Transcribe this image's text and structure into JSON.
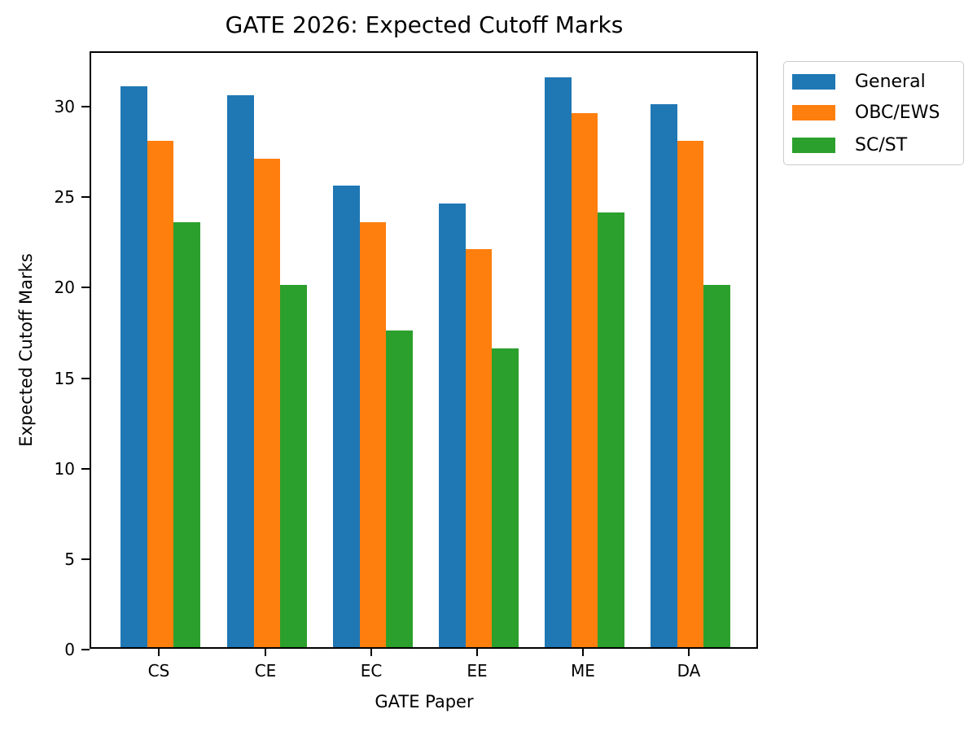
{
  "chart_data": {
    "type": "bar",
    "title": "GATE 2026: Expected Cutoff Marks",
    "xlabel": "GATE Paper",
    "ylabel": "Expected Cutoff Marks",
    "categories": [
      "CS",
      "CE",
      "EC",
      "EE",
      "ME",
      "DA"
    ],
    "series": [
      {
        "name": "General",
        "color": "#1f77b4",
        "values": [
          31,
          30.5,
          25.5,
          24.5,
          31.5,
          30
        ]
      },
      {
        "name": "OBC/EWS",
        "color": "#ff7f0e",
        "values": [
          28,
          27,
          23.5,
          22,
          29.5,
          28
        ]
      },
      {
        "name": "SC/ST",
        "color": "#2ca02c",
        "values": [
          23.5,
          20,
          17.5,
          16.5,
          24,
          20
        ]
      }
    ],
    "yticks": [
      0,
      5,
      10,
      15,
      20,
      25,
      30
    ],
    "ylim": [
      0,
      33
    ],
    "grid": false,
    "legend_position": "outside upper right"
  },
  "title": "GATE 2026: Expected Cutoff Marks",
  "xlabel": "GATE Paper",
  "ylabel": "Expected Cutoff Marks",
  "legend": [
    "General",
    "OBC/EWS",
    "SC/ST"
  ]
}
